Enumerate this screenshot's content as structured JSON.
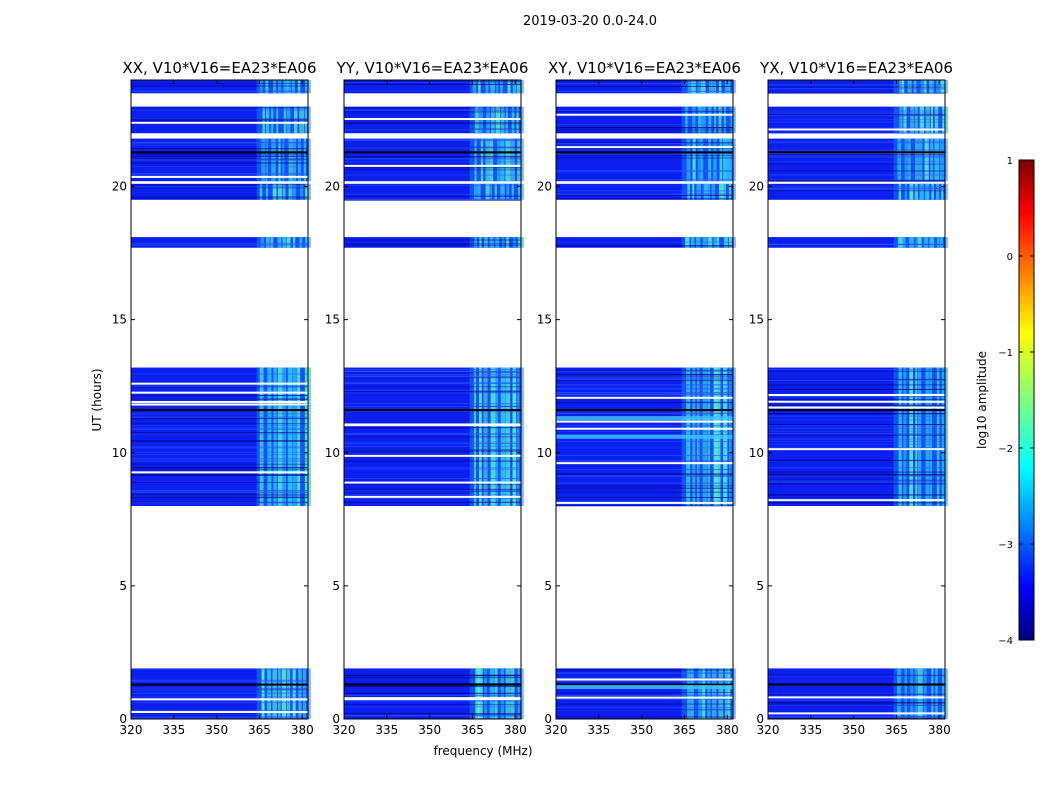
{
  "figure_title": "2019-03-20 0.0-24.0",
  "chart_data": {
    "type": "heatmap",
    "panels": [
      {
        "title": "XX, V10*V16=EA23*EA06",
        "polarization": "XX"
      },
      {
        "title": "YY, V10*V16=EA23*EA06",
        "polarization": "YY"
      },
      {
        "title": "XY, V10*V16=EA23*EA06",
        "polarization": "XY"
      },
      {
        "title": "YX, V10*V16=EA23*EA06",
        "polarization": "YX"
      }
    ],
    "baseline": "V10*V16=EA23*EA06",
    "xlabel": "frequency (MHz)",
    "ylabel": "UT (hours)",
    "xlim": [
      320,
      382
    ],
    "ylim": [
      0,
      24
    ],
    "xticks": [
      320,
      335,
      350,
      365,
      380
    ],
    "yticks": [
      0,
      5,
      10,
      15,
      20
    ],
    "data_blocks_hours": [
      [
        0.0,
        1.9
      ],
      [
        8.0,
        13.2
      ],
      [
        17.7,
        18.1
      ],
      [
        19.5,
        20.1
      ],
      [
        20.2,
        21.8
      ],
      [
        22.0,
        23.0
      ],
      [
        23.5,
        24.0
      ]
    ],
    "bright_band_mhz": [
      364,
      383
    ],
    "colorbar": {
      "label": "log10 amplitude",
      "range": [
        -4,
        1
      ],
      "ticks": [
        "1",
        "0",
        "−1",
        "−2",
        "−3",
        "−4"
      ],
      "colormap": "jet"
    }
  }
}
